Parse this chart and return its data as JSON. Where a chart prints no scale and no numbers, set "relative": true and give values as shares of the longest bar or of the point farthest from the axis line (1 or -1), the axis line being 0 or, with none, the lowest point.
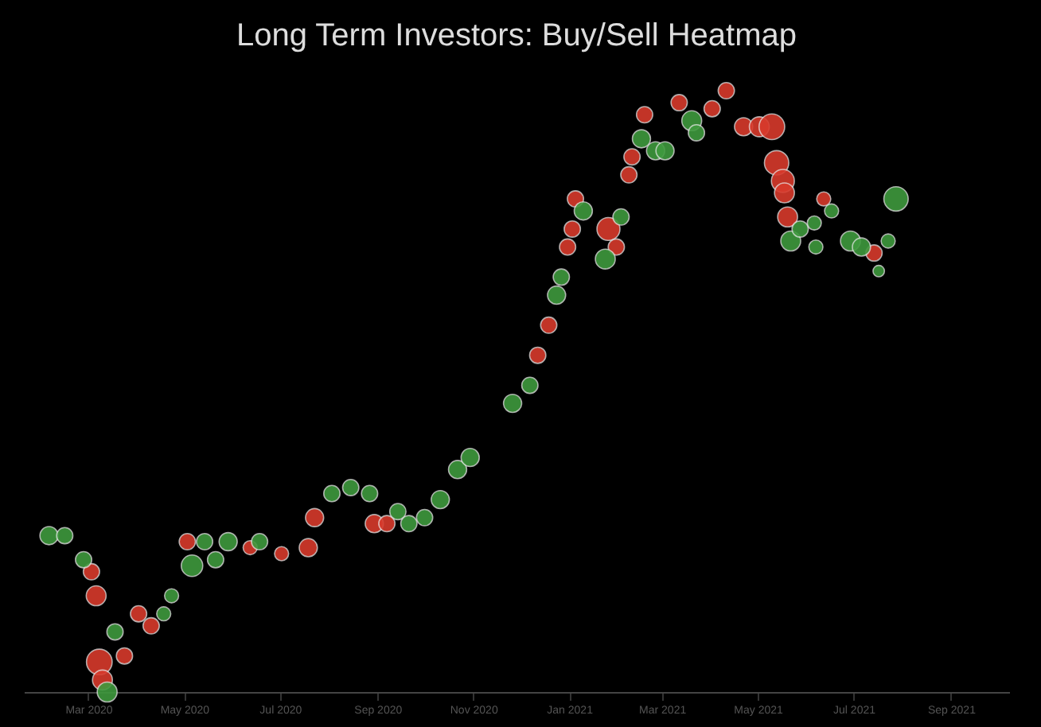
{
  "chart_data": {
    "type": "bubble",
    "title": "Long Term Investors: Buy/Sell Heatmap",
    "relative": true,
    "marker": "circle",
    "grid": false,
    "legend": false,
    "xlim": [
      "2020-01-20",
      "2021-10-08"
    ],
    "xticks": [
      {
        "value": "2020-03-01",
        "label": "Mar 2020"
      },
      {
        "value": "2020-05-01",
        "label": "May 2020"
      },
      {
        "value": "2020-07-01",
        "label": "Jul 2020"
      },
      {
        "value": "2020-09-01",
        "label": "Sep 2020"
      },
      {
        "value": "2020-11-01",
        "label": "Nov 2020"
      },
      {
        "value": "2021-01-01",
        "label": "Jan 2021"
      },
      {
        "value": "2021-03-01",
        "label": "Mar 2021"
      },
      {
        "value": "2021-05-01",
        "label": "May 2021"
      },
      {
        "value": "2021-07-01",
        "label": "Jul 2021"
      },
      {
        "value": "2021-09-01",
        "label": "Sep 2021"
      }
    ],
    "series": [
      {
        "color": "#d83a2c",
        "x": [
          "2020-03-03",
          "2020-03-06",
          "2020-03-08",
          "2020-03-10",
          "2020-03-24",
          "2020-04-02",
          "2020-04-10",
          "2020-05-03",
          "2020-06-12",
          "2020-07-02",
          "2020-07-19",
          "2020-07-23",
          "2020-08-30",
          "2020-09-07",
          "2020-12-12",
          "2020-12-19",
          "2020-12-31",
          "2021-01-03",
          "2021-01-05",
          "2021-01-26",
          "2021-01-31",
          "2021-02-08",
          "2021-02-10",
          "2021-02-18",
          "2021-03-12",
          "2021-04-02",
          "2021-04-11",
          "2021-04-22",
          "2021-05-02",
          "2021-05-10",
          "2021-05-13",
          "2021-05-17",
          "2021-05-18",
          "2021-05-20",
          "2021-06-12",
          "2021-07-14"
        ],
        "values": [
          0.2,
          0.16,
          0.05,
          0.02,
          0.06,
          0.13,
          0.11,
          0.25,
          0.24,
          0.23,
          0.24,
          0.29,
          0.28,
          0.28,
          0.56,
          0.61,
          0.74,
          0.77,
          0.82,
          0.77,
          0.74,
          0.86,
          0.89,
          0.96,
          0.98,
          0.97,
          1.0,
          0.94,
          0.94,
          0.94,
          0.88,
          0.85,
          0.83,
          0.79,
          0.82,
          0.73
        ],
        "sizes": [
          0.4,
          0.6,
          1.0,
          0.6,
          0.4,
          0.4,
          0.4,
          0.4,
          0.3,
          0.3,
          0.5,
          0.5,
          0.5,
          0.4,
          0.4,
          0.4,
          0.4,
          0.4,
          0.4,
          0.8,
          0.4,
          0.4,
          0.4,
          0.4,
          0.4,
          0.4,
          0.4,
          0.5,
          0.6,
          1.0,
          0.9,
          0.8,
          0.6,
          0.6,
          0.3,
          0.4
        ]
      },
      {
        "color": "#3f9a3e",
        "x": [
          "2020-02-05",
          "2020-02-15",
          "2020-02-27",
          "2020-03-13",
          "2020-03-18",
          "2020-04-18",
          "2020-04-23",
          "2020-05-06",
          "2020-05-14",
          "2020-05-21",
          "2020-05-29",
          "2020-06-18",
          "2020-08-03",
          "2020-08-15",
          "2020-08-27",
          "2020-09-14",
          "2020-09-21",
          "2020-10-01",
          "2020-10-11",
          "2020-10-22",
          "2020-10-30",
          "2020-11-26",
          "2020-12-07",
          "2020-12-24",
          "2020-12-27",
          "2021-01-10",
          "2021-01-24",
          "2021-02-03",
          "2021-02-16",
          "2021-02-25",
          "2021-03-03",
          "2021-03-20",
          "2021-03-23",
          "2021-05-22",
          "2021-05-28",
          "2021-06-06",
          "2021-06-07",
          "2021-06-17",
          "2021-06-29",
          "2021-07-06",
          "2021-07-17",
          "2021-07-23",
          "2021-07-28"
        ],
        "values": [
          0.26,
          0.26,
          0.22,
          0.0,
          0.1,
          0.13,
          0.16,
          0.21,
          0.25,
          0.22,
          0.25,
          0.25,
          0.33,
          0.34,
          0.33,
          0.3,
          0.28,
          0.29,
          0.32,
          0.37,
          0.39,
          0.48,
          0.51,
          0.66,
          0.69,
          0.8,
          0.72,
          0.79,
          0.92,
          0.9,
          0.9,
          0.95,
          0.93,
          0.75,
          0.77,
          0.78,
          0.74,
          0.8,
          0.75,
          0.74,
          0.7,
          0.75,
          0.82
        ],
        "sizes": [
          0.5,
          0.4,
          0.4,
          0.6,
          0.4,
          0.3,
          0.3,
          0.7,
          0.4,
          0.4,
          0.5,
          0.4,
          0.4,
          0.4,
          0.4,
          0.4,
          0.4,
          0.4,
          0.5,
          0.5,
          0.5,
          0.5,
          0.4,
          0.5,
          0.4,
          0.5,
          0.6,
          0.4,
          0.5,
          0.5,
          0.5,
          0.6,
          0.4,
          0.6,
          0.4,
          0.3,
          0.3,
          0.3,
          0.6,
          0.5,
          0.2,
          0.3,
          0.9
        ]
      }
    ]
  }
}
